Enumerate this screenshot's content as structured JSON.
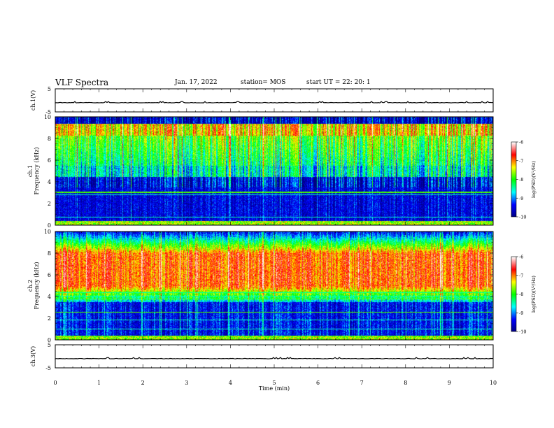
{
  "header": {
    "title": "VLF Spectra",
    "date": "Jan. 17, 2022",
    "station": "station= MOS",
    "start": "start  UT  =   22: 20: 1"
  },
  "chart_data": [
    {
      "type": "line",
      "panel": "ch1-waveform",
      "ylabel": "ch.1(V)",
      "yticks": [
        "5",
        "-5"
      ],
      "ylim": [
        -5,
        5
      ],
      "xlim": [
        0,
        10
      ],
      "approx_level": -1
    },
    {
      "type": "heatmap",
      "panel": "ch1-spectrogram",
      "ylabel": "ch.1\nFrequency (kHz)",
      "yticks": [
        "0",
        "2",
        "4",
        "6",
        "8",
        "10"
      ],
      "ylim": [
        0,
        10
      ],
      "xlim": [
        0,
        10
      ],
      "colorbar": {
        "label": "log(PSD)(V²/Hz)",
        "ticks": [
          "-6",
          "-7",
          "-8",
          "-9",
          "-10"
        ],
        "range": [
          -10,
          -6
        ]
      }
    },
    {
      "type": "heatmap",
      "panel": "ch2-spectrogram",
      "ylabel": "ch.2\nFrequency (kHz)",
      "yticks": [
        "0",
        "2",
        "4",
        "6",
        "8",
        "10"
      ],
      "ylim": [
        0,
        10
      ],
      "xlim": [
        0,
        10
      ],
      "colorbar": {
        "label": "log(PSD)(V²/Hz)",
        "ticks": [
          "-6",
          "-7",
          "-8",
          "-9",
          "-10"
        ],
        "range": [
          -10,
          -6
        ]
      }
    },
    {
      "type": "line",
      "panel": "ch3-waveform",
      "ylabel": "ch.3(V)",
      "yticks": [
        "5",
        "-5"
      ],
      "ylim": [
        -5,
        5
      ],
      "xlim": [
        0,
        10
      ],
      "approx_level": -1
    }
  ],
  "xaxis": {
    "label": "Time (min)",
    "ticks": [
      "0",
      "1",
      "2",
      "3",
      "4",
      "5",
      "6",
      "7",
      "8",
      "9",
      "10"
    ]
  },
  "colors": {
    "jet": [
      "#000080",
      "#0000ff",
      "#00ffff",
      "#00ff00",
      "#ffff00",
      "#ff0000",
      "#ffffff"
    ]
  }
}
